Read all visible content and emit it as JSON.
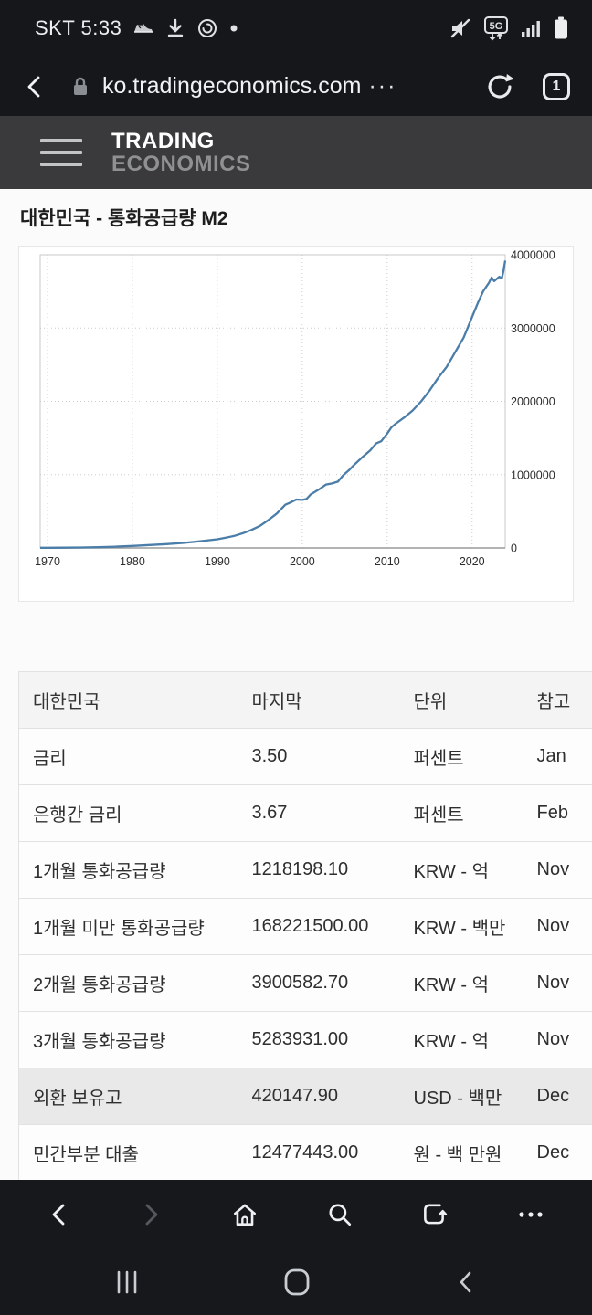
{
  "colors": {
    "chrome_bg": "#15171b",
    "site_header_bg": "#3a3a3c",
    "chart_line": "#4a7da8",
    "highlight_row_bg": "#e9e9e9",
    "table_header_bg": "#f4f4f4"
  },
  "status_bar": {
    "carrier_time": "SKT 5:33",
    "network_label": "5G",
    "icons_left": [
      "shoe-icon",
      "download-icon",
      "timer-icon",
      "notification-dot"
    ],
    "icons_right": [
      "mute-icon",
      "5g-network-icon",
      "signal-icon",
      "battery-icon"
    ]
  },
  "address_bar": {
    "url": "ko.tradingeconomics.com",
    "url_ellipsis": "···",
    "tab_count": "1",
    "icons": [
      "back-icon",
      "lock-icon",
      "refresh-icon",
      "tab-count-box"
    ]
  },
  "site_header": {
    "logo_line1": "TRADING",
    "logo_line2": "ECONOMICS"
  },
  "page": {
    "title": "대한민국 - 통화공급량 M2"
  },
  "chart_data": {
    "type": "line",
    "title": "대한민국 - 통화공급량 M2",
    "xlabel": "",
    "ylabel": "",
    "xlim": [
      1970,
      2023.9
    ],
    "ylim": [
      0,
      4000000
    ],
    "x_ticks": [
      1970,
      1980,
      1990,
      2000,
      2010,
      2020
    ],
    "y_ticks": [
      0,
      1000000,
      2000000,
      3000000,
      4000000
    ],
    "grid": true,
    "legend": "none",
    "line_color": "#4a7da8",
    "series": [
      {
        "name": "통화공급량 M2 (KRW - 억)",
        "points": [
          [
            1970,
            2000
          ],
          [
            1972,
            3500
          ],
          [
            1974,
            6000
          ],
          [
            1976,
            10000
          ],
          [
            1978,
            17000
          ],
          [
            1980,
            28000
          ],
          [
            1982,
            40000
          ],
          [
            1984,
            52000
          ],
          [
            1986,
            68000
          ],
          [
            1988,
            92000
          ],
          [
            1990,
            118000
          ],
          [
            1991,
            140000
          ],
          [
            1992,
            165000
          ],
          [
            1993,
            200000
          ],
          [
            1994,
            245000
          ],
          [
            1995,
            300000
          ],
          [
            1996,
            380000
          ],
          [
            1997,
            470000
          ],
          [
            1998,
            590000
          ],
          [
            1998.7,
            625000
          ],
          [
            1999.3,
            660000
          ],
          [
            2000,
            655000
          ],
          [
            2000.5,
            668000
          ],
          [
            2001,
            730000
          ],
          [
            2002,
            800000
          ],
          [
            2002.8,
            865000
          ],
          [
            2003.5,
            880000
          ],
          [
            2004.2,
            905000
          ],
          [
            2004.8,
            990000
          ],
          [
            2005.5,
            1060000
          ],
          [
            2006,
            1120000
          ],
          [
            2007,
            1230000
          ],
          [
            2008,
            1330000
          ],
          [
            2008.7,
            1425000
          ],
          [
            2009.3,
            1455000
          ],
          [
            2010,
            1560000
          ],
          [
            2010.5,
            1645000
          ],
          [
            2011,
            1695000
          ],
          [
            2012,
            1780000
          ],
          [
            2013,
            1875000
          ],
          [
            2014,
            2000000
          ],
          [
            2015,
            2150000
          ],
          [
            2016,
            2320000
          ],
          [
            2017,
            2470000
          ],
          [
            2018,
            2670000
          ],
          [
            2019,
            2870000
          ],
          [
            2020,
            3150000
          ],
          [
            2020.7,
            3350000
          ],
          [
            2021.3,
            3500000
          ],
          [
            2022,
            3620000
          ],
          [
            2022.3,
            3690000
          ],
          [
            2022.6,
            3640000
          ],
          [
            2022.9,
            3670000
          ],
          [
            2023.2,
            3700000
          ],
          [
            2023.5,
            3680000
          ],
          [
            2023.7,
            3780000
          ],
          [
            2023.9,
            3920000
          ]
        ]
      }
    ]
  },
  "table": {
    "headers": [
      "대한민국",
      "마지막",
      "단위",
      "참고"
    ],
    "rows": [
      {
        "name": "금리",
        "last": "3.50",
        "unit": "퍼센트",
        "ref": "Jan",
        "highlight": false
      },
      {
        "name": "은행간 금리",
        "last": "3.67",
        "unit": "퍼센트",
        "ref": "Feb",
        "highlight": false
      },
      {
        "name": "1개월 통화공급량",
        "last": "1218198.10",
        "unit": "KRW - 억",
        "ref": "Nov",
        "highlight": false
      },
      {
        "name": "1개월 미만 통화공급량",
        "last": "168221500.00",
        "unit": "KRW - 백만",
        "ref": "Nov",
        "highlight": false
      },
      {
        "name": "2개월 통화공급량",
        "last": "3900582.70",
        "unit": "KRW - 억",
        "ref": "Nov",
        "highlight": false
      },
      {
        "name": "3개월 통화공급량",
        "last": "5283931.00",
        "unit": "KRW - 억",
        "ref": "Nov",
        "highlight": false
      },
      {
        "name": "외환 보유고",
        "last": "420147.90",
        "unit": "USD - 백만",
        "ref": "Dec",
        "highlight": true
      },
      {
        "name": "민간부분 대출",
        "last": "12477443.00",
        "unit": "원 - 백 만원",
        "ref": "Dec",
        "highlight": false
      }
    ]
  },
  "browser_toolbar": {
    "icons": [
      "back-icon",
      "forward-icon",
      "home-icon",
      "search-icon",
      "tabs-icon",
      "more-menu-icon"
    ],
    "more_label": "•••"
  },
  "android_nav": {
    "icons": [
      "recents-icon",
      "home-icon",
      "back-icon"
    ]
  }
}
